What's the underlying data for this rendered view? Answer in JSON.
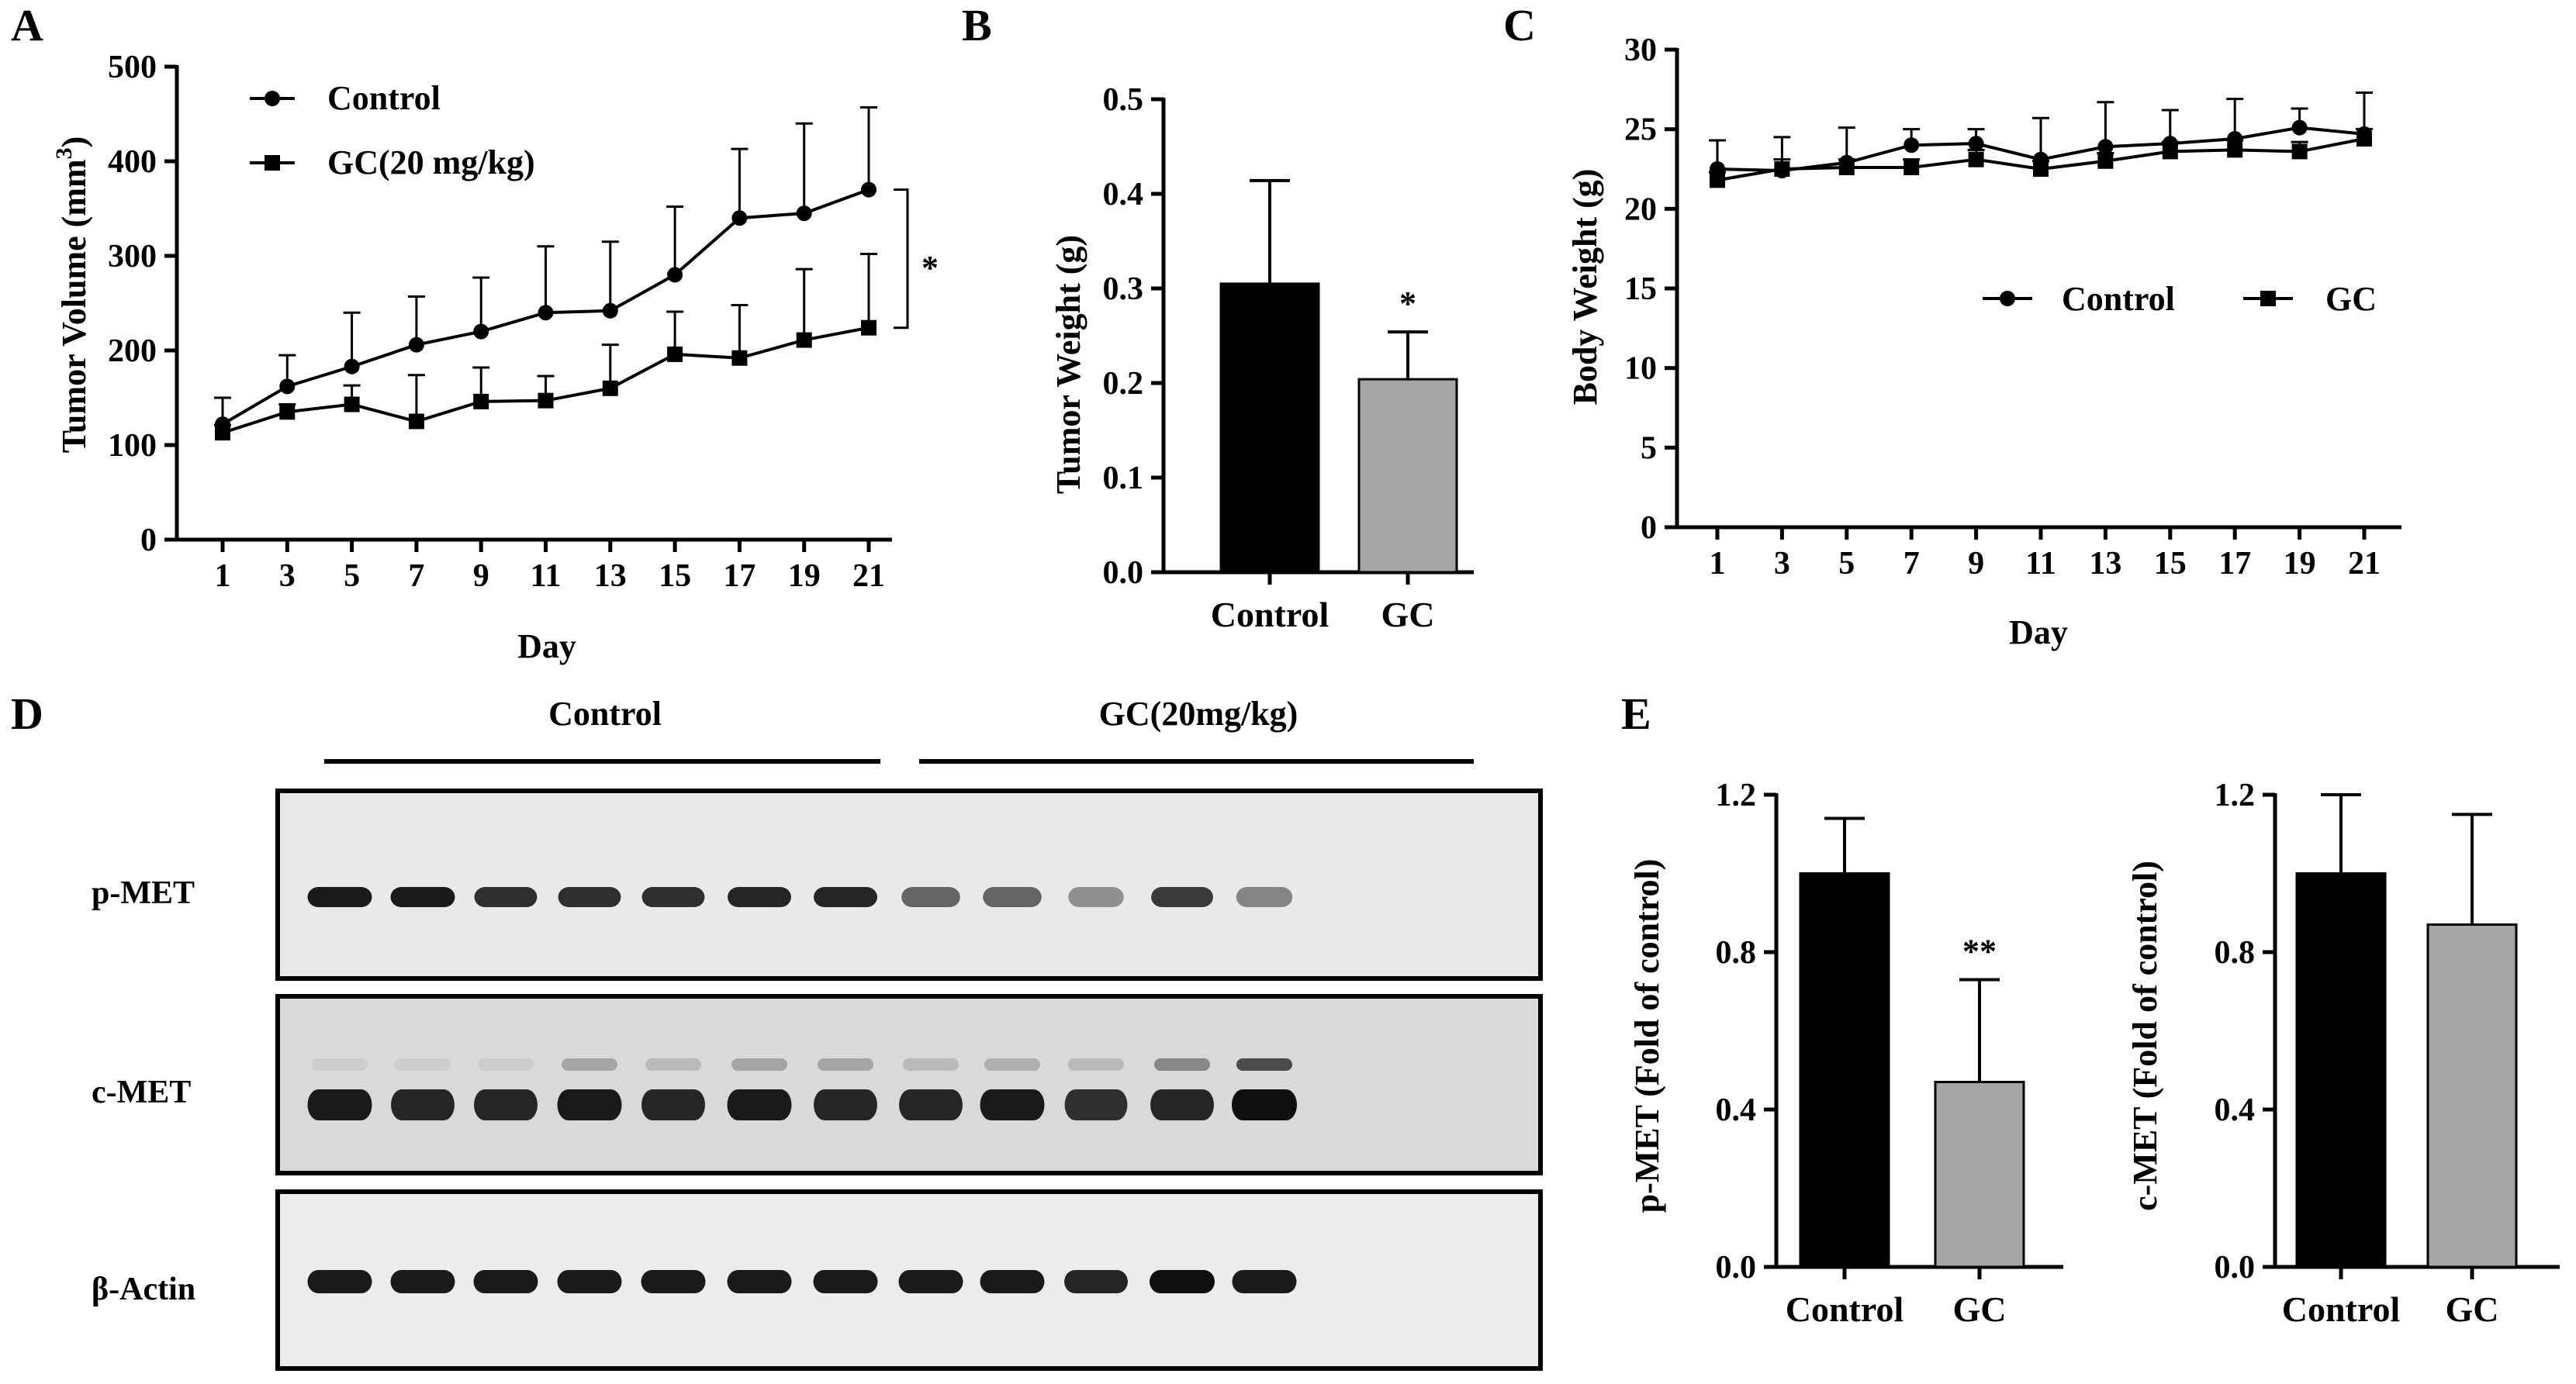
{
  "panels": {
    "A": "A",
    "B": "B",
    "C": "C",
    "D": "D",
    "E": "E"
  },
  "chart_data": [
    {
      "id": "A",
      "type": "line",
      "title": "",
      "xlabel": "Day",
      "ylabel": "Tumor Volume (mm³)",
      "ylabel_main": "Tumor Volume (mm",
      "ylabel_sup": "3",
      "ylabel_end": ")",
      "ylim": [
        0,
        500
      ],
      "yticks": [
        "0",
        "100",
        "200",
        "300",
        "400",
        "500"
      ],
      "x": [
        1,
        3,
        5,
        7,
        9,
        11,
        13,
        15,
        17,
        19,
        21
      ],
      "xticks": [
        "1",
        "3",
        "5",
        "7",
        "9",
        "11",
        "13",
        "15",
        "17",
        "19",
        "21"
      ],
      "legend": "top-left",
      "series": [
        {
          "name": "Control",
          "marker": "circle",
          "values": [
            122,
            162,
            183,
            206,
            220,
            240,
            242,
            280,
            340,
            345,
            370
          ],
          "err": [
            28,
            33,
            57,
            51,
            57,
            70,
            73,
            72,
            73,
            95,
            87
          ]
        },
        {
          "name": "GC(20 mg/kg)",
          "marker": "square",
          "values": [
            113,
            135,
            143,
            125,
            146,
            147,
            160,
            196,
            192,
            211,
            224
          ],
          "err": [
            8,
            8,
            20,
            49,
            36,
            26,
            46,
            45,
            56,
            75,
            78
          ]
        }
      ],
      "annotation": "*"
    },
    {
      "id": "B",
      "type": "bar",
      "xlabel": "",
      "ylabel": "Tumor Weight (g)",
      "ylim": [
        0,
        0.5
      ],
      "yticks": [
        "0.0",
        "0.1",
        "0.2",
        "0.3",
        "0.4",
        "0.5"
      ],
      "categories": [
        "Control",
        "GC"
      ],
      "values": [
        0.305,
        0.204
      ],
      "err": [
        0.109,
        0.05
      ],
      "colors": [
        "#000000",
        "#a5a5a8"
      ],
      "annotations": [
        "",
        "*"
      ]
    },
    {
      "id": "C",
      "type": "line",
      "xlabel": "Day",
      "ylabel": "Body Weight (g)",
      "ylim": [
        0,
        30
      ],
      "yticks": [
        "0",
        "5",
        "10",
        "15",
        "20",
        "25",
        "30"
      ],
      "x": [
        1,
        3,
        5,
        7,
        9,
        11,
        13,
        15,
        17,
        19,
        21
      ],
      "xticks": [
        "1",
        "3",
        "5",
        "7",
        "9",
        "11",
        "13",
        "15",
        "17",
        "19",
        "21"
      ],
      "legend": "center-right",
      "series": [
        {
          "name": "Control",
          "marker": "circle",
          "values": [
            22.5,
            22.4,
            22.9,
            24.0,
            24.1,
            23.1,
            23.9,
            24.1,
            24.4,
            25.1,
            24.7
          ],
          "err": [
            1.8,
            2.1,
            2.2,
            1.0,
            0.9,
            2.6,
            2.8,
            2.1,
            2.5,
            1.2,
            2.6
          ]
        },
        {
          "name": "GC",
          "marker": "square",
          "values": [
            21.8,
            22.5,
            22.6,
            22.6,
            23.1,
            22.5,
            23.0,
            23.6,
            23.7,
            23.6,
            24.4
          ],
          "err": [
            0.5,
            0.6,
            0.5,
            0.5,
            0.6,
            0.5,
            0.5,
            0.6,
            0.6,
            0.6,
            0.6
          ]
        }
      ]
    },
    {
      "id": "E1",
      "type": "bar",
      "xlabel": "",
      "ylabel": "p-MET (Fold of control)",
      "ylim": [
        0,
        1.2
      ],
      "yticks": [
        "0.0",
        "0.4",
        "0.8",
        "1.2"
      ],
      "categories": [
        "Control",
        "GC"
      ],
      "values": [
        1.0,
        0.47
      ],
      "err": [
        0.14,
        0.26
      ],
      "colors": [
        "#000000",
        "#a5a5a8"
      ],
      "annotations": [
        "",
        "**"
      ]
    },
    {
      "id": "E2",
      "type": "bar",
      "xlabel": "",
      "ylabel": "c-MET (Fold of control)",
      "ylim": [
        0,
        1.2
      ],
      "yticks": [
        "0.0",
        "0.4",
        "0.8",
        "1.2"
      ],
      "categories": [
        "Control",
        "GC"
      ],
      "values": [
        1.0,
        0.87
      ],
      "err": [
        0.2,
        0.28
      ],
      "colors": [
        "#000000",
        "#a5a5a8"
      ],
      "annotations": [
        "",
        ""
      ]
    }
  ],
  "blot": {
    "group_labels": [
      "Control",
      "GC(20mg/kg)"
    ],
    "rows": [
      {
        "label": "p-MET",
        "intensity": [
          0.95,
          0.95,
          0.85,
          0.85,
          0.85,
          0.9,
          0.9,
          0.6,
          0.6,
          0.4,
          0.8,
          0.45
        ]
      },
      {
        "label": "c-MET",
        "intensity": [
          0.95,
          0.9,
          0.9,
          0.95,
          0.9,
          0.95,
          0.9,
          0.9,
          0.95,
          0.85,
          0.9,
          1.0
        ],
        "upper_intensity": [
          0.1,
          0.1,
          0.1,
          0.3,
          0.2,
          0.3,
          0.3,
          0.2,
          0.25,
          0.2,
          0.45,
          0.75
        ]
      },
      {
        "label": "β-Actin",
        "intensity": [
          0.95,
          0.95,
          0.95,
          0.95,
          0.95,
          0.95,
          0.95,
          0.95,
          0.95,
          0.9,
          1.0,
          0.95
        ]
      }
    ]
  }
}
